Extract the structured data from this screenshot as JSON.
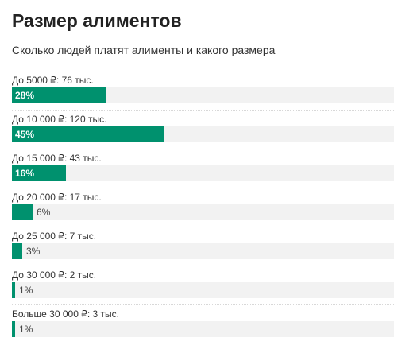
{
  "colors": {
    "bar": "#00916e",
    "track": "#f2f2f2"
  },
  "chart_data": {
    "type": "bar",
    "orientation": "horizontal",
    "title": "Размер алиментов",
    "subtitle": "Сколько людей платят алименты и какого размера",
    "categories": [
      "До 5000 ₽: 76 тыс.",
      "До 10 000 ₽: 120 тыс.",
      "До 15 000 ₽: 43 тыс.",
      "До 20 000 ₽: 17 тыс.",
      "До 25 000 ₽: 7 тыс.",
      "До 30 000 ₽: 2 тыс.",
      "Больше 30 000 ₽: 3 тыс."
    ],
    "values": [
      28,
      45,
      16,
      6,
      3,
      1,
      1
    ],
    "value_labels": [
      "28%",
      "45%",
      "16%",
      "6%",
      "3%",
      "1%",
      "1%"
    ],
    "xlim": [
      0,
      113
    ],
    "unit": "%",
    "grid": false,
    "legend": "none"
  }
}
